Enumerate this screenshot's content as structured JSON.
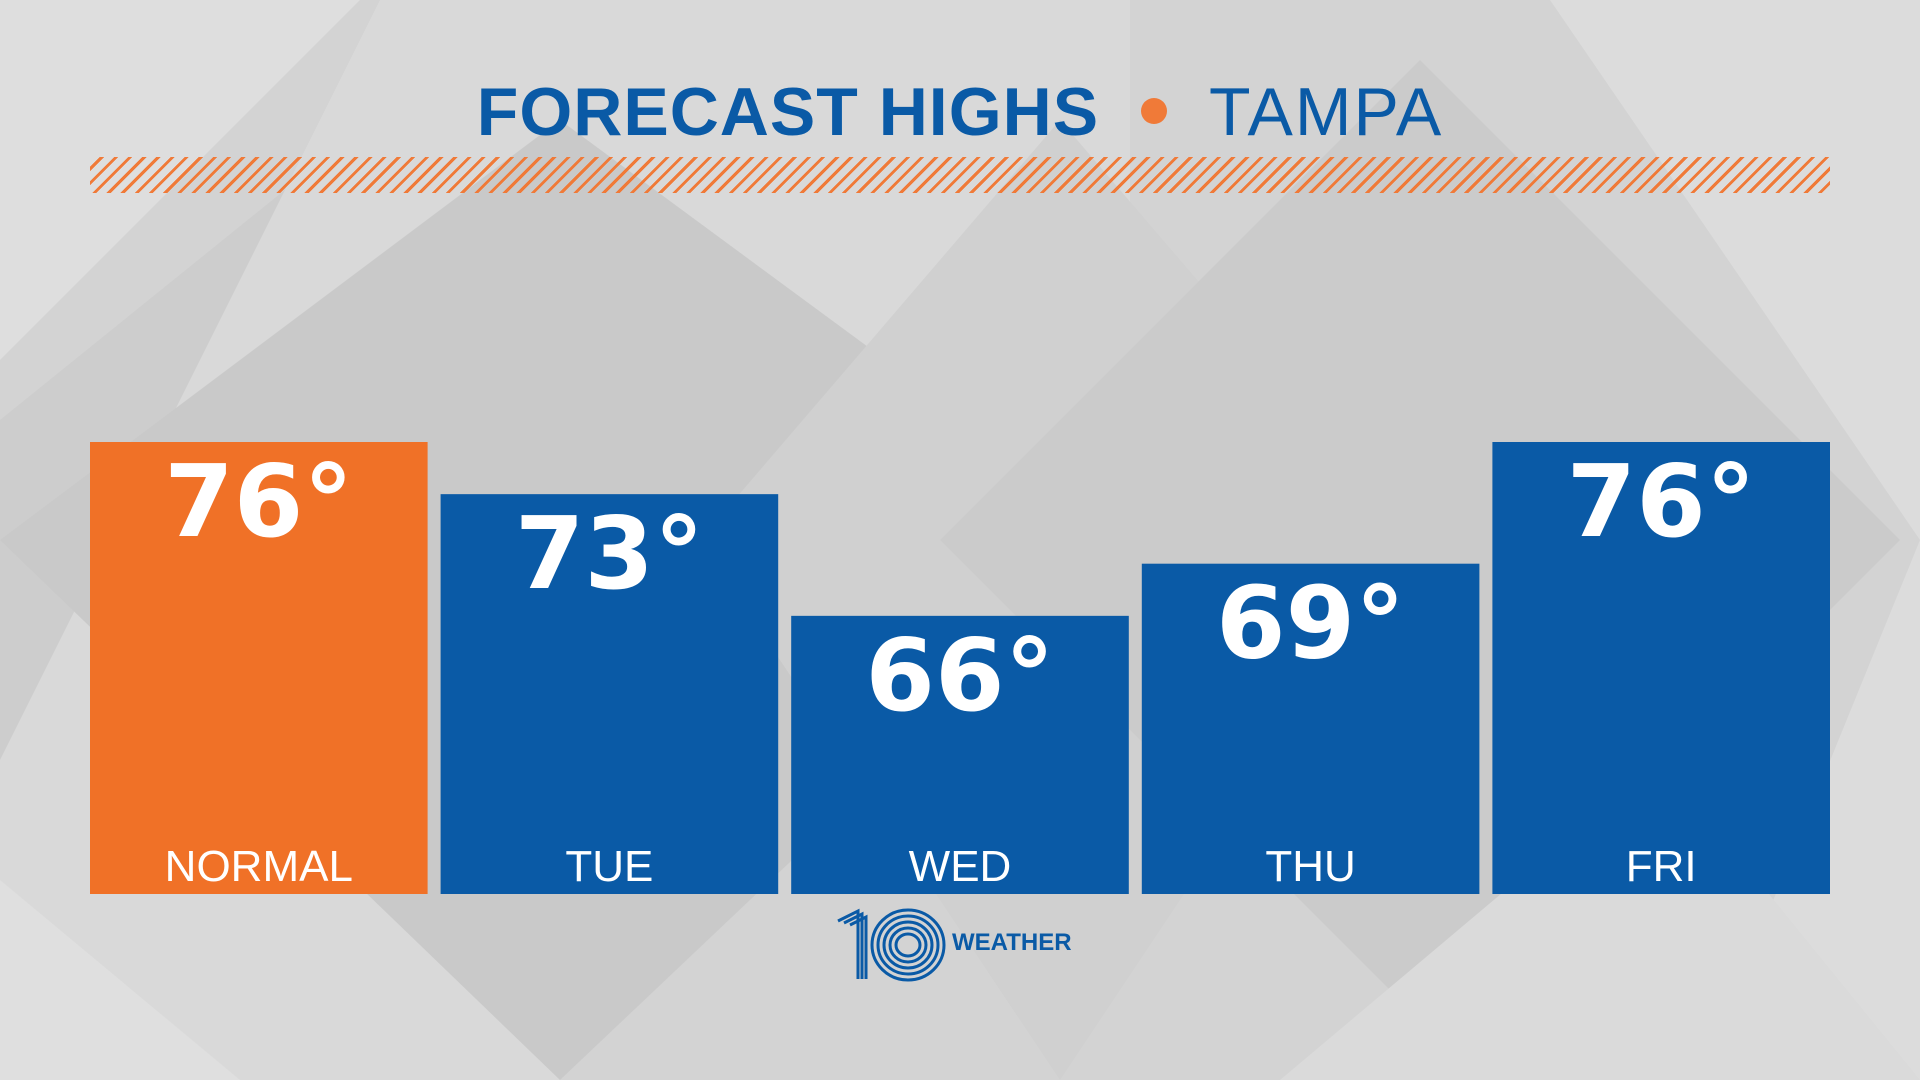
{
  "header": {
    "title": "FORECAST HIGHS",
    "city": "TAMPA"
  },
  "colors": {
    "blue": "#0a5aa6",
    "orange": "#f07127",
    "accent": "#f07a38"
  },
  "logo": {
    "number": "10",
    "word": "WEATHER"
  },
  "chart_data": {
    "type": "bar",
    "title": "FORECAST HIGHS • TAMPA",
    "categories": [
      "NORMAL",
      "TUE",
      "WED",
      "THU",
      "FRI"
    ],
    "values": [
      76,
      73,
      66,
      69,
      76
    ],
    "value_labels": [
      "76°",
      "73°",
      "66°",
      "69°",
      "76°"
    ],
    "highlight": [
      true,
      false,
      false,
      false,
      false
    ],
    "unit": "°F",
    "ylim": [
      50,
      76
    ],
    "xlabel": "",
    "ylabel": "",
    "grid": false
  }
}
